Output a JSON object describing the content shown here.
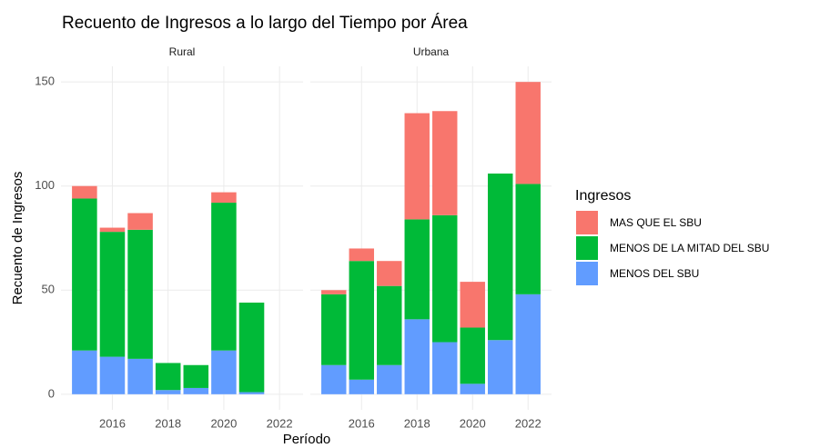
{
  "chart_data": {
    "type": "bar",
    "stacked": true,
    "title": "Recuento de Ingresos a lo largo del Tiempo por Área",
    "xlabel": "Período",
    "ylabel": "Recuento de Ingresos",
    "legend_title": "Ingresos",
    "xlim": [
      2014.155,
      2022.845
    ],
    "xticks": [
      2016,
      2018,
      2020,
      2022
    ],
    "ylim": [
      -7.5,
      157.5
    ],
    "yticks": [
      0,
      50,
      100,
      150
    ],
    "grid": true,
    "facets": [
      {
        "title": "Rural",
        "x": [
          2015,
          2016,
          2017,
          2018,
          2019,
          2020,
          2021
        ],
        "series": [
          {
            "name": "MAS QUE EL SBU",
            "color": "#f8766d",
            "values": [
              6,
              2,
              8,
              null,
              null,
              5,
              null
            ]
          },
          {
            "name": "MENOS DE LA MITAD DEL SBU",
            "color": "#00ba38",
            "values": [
              73,
              60,
              62,
              13,
              11,
              71,
              43
            ]
          },
          {
            "name": "MENOS DEL SBU",
            "color": "#619cff",
            "values": [
              21,
              18,
              17,
              2,
              3,
              21,
              1
            ]
          }
        ]
      },
      {
        "title": "Urbana",
        "x": [
          2015,
          2016,
          2017,
          2018,
          2019,
          2020,
          2021,
          2022
        ],
        "series": [
          {
            "name": "MAS QUE EL SBU",
            "color": "#f8766d",
            "values": [
              2,
              6,
              12,
              51,
              50,
              22,
              null,
              49
            ]
          },
          {
            "name": "MENOS DE LA MITAD DEL SBU",
            "color": "#00ba38",
            "values": [
              34,
              57,
              38,
              48,
              61,
              27,
              80,
              53
            ]
          },
          {
            "name": "MENOS DEL SBU",
            "color": "#619cff",
            "values": [
              14,
              7,
              14,
              36,
              25,
              5,
              26,
              48
            ]
          }
        ]
      }
    ]
  }
}
